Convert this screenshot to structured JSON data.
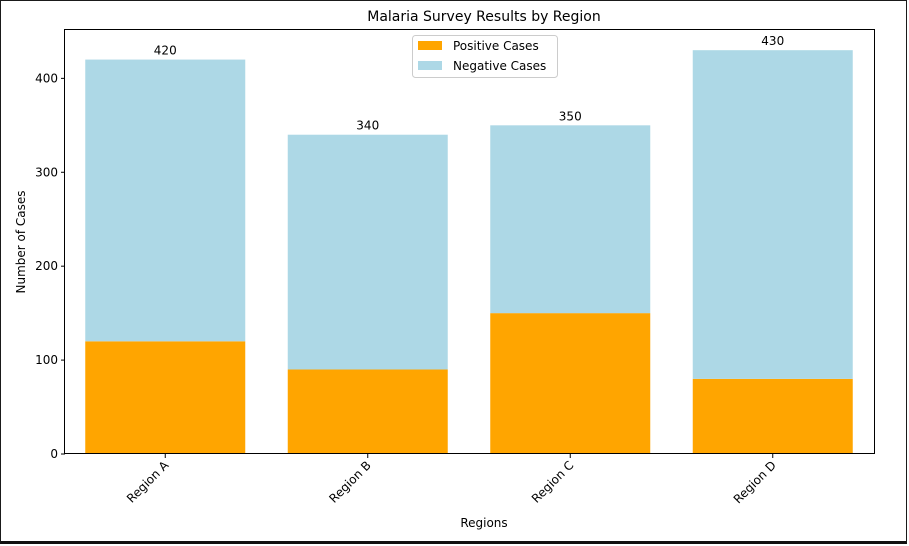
{
  "chart_data": {
    "type": "bar",
    "stacked": true,
    "title": "Malaria Survey Results by Region",
    "xlabel": "Regions",
    "ylabel": "Number of Cases",
    "categories": [
      "Region A",
      "Region B",
      "Region C",
      "Region D"
    ],
    "series": [
      {
        "name": "Positive Cases",
        "values": [
          120,
          90,
          150,
          80
        ],
        "color": "#ffa500"
      },
      {
        "name": "Negative Cases",
        "values": [
          300,
          250,
          200,
          350
        ],
        "color": "#add8e6"
      }
    ],
    "totals": [
      "420",
      "340",
      "350",
      "430"
    ],
    "ylim": [
      0,
      451.5
    ],
    "yticks": [
      "0",
      "100",
      "200",
      "300",
      "400"
    ],
    "ytick_values": [
      0,
      100,
      200,
      300,
      400
    ],
    "legend_position": "top-center",
    "grid": false
  }
}
